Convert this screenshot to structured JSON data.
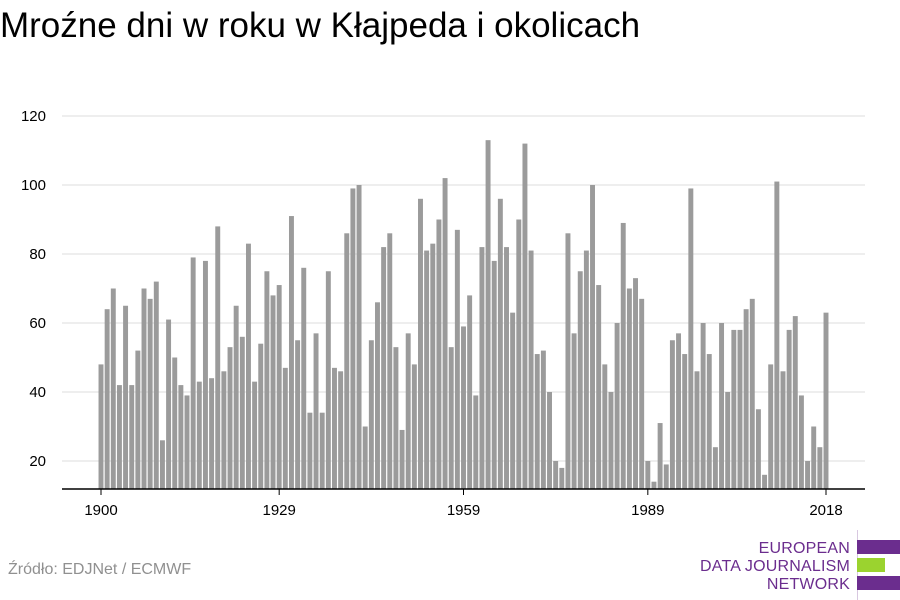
{
  "chart_data": {
    "type": "bar",
    "title": "Mroźne dni w roku w Kłajpeda i okolicach",
    "xlabel": "",
    "ylabel": "",
    "ylim": [
      12,
      120
    ],
    "yticks": [
      20,
      40,
      60,
      80,
      100,
      120
    ],
    "xtick_labels": [
      {
        "year": 1900,
        "label": "1900"
      },
      {
        "year": 1929,
        "label": "1929"
      },
      {
        "year": 1959,
        "label": "1959"
      },
      {
        "year": 1989,
        "label": "1989"
      },
      {
        "year": 2018,
        "label": "2018"
      }
    ],
    "x_start": 1900,
    "x_end": 2018,
    "grid": true,
    "bar_color": "#9b9b9b",
    "x": [
      1900,
      1901,
      1902,
      1903,
      1904,
      1905,
      1906,
      1907,
      1908,
      1909,
      1910,
      1911,
      1912,
      1913,
      1914,
      1915,
      1916,
      1917,
      1918,
      1919,
      1920,
      1921,
      1922,
      1923,
      1924,
      1925,
      1926,
      1927,
      1928,
      1929,
      1930,
      1931,
      1932,
      1933,
      1934,
      1935,
      1936,
      1937,
      1938,
      1939,
      1940,
      1941,
      1942,
      1943,
      1944,
      1945,
      1946,
      1947,
      1948,
      1949,
      1950,
      1951,
      1952,
      1953,
      1954,
      1955,
      1956,
      1957,
      1958,
      1959,
      1960,
      1961,
      1962,
      1963,
      1964,
      1965,
      1966,
      1967,
      1968,
      1969,
      1970,
      1971,
      1972,
      1973,
      1974,
      1975,
      1976,
      1977,
      1978,
      1979,
      1980,
      1981,
      1982,
      1983,
      1984,
      1985,
      1986,
      1987,
      1988,
      1989,
      1990,
      1991,
      1992,
      1993,
      1994,
      1995,
      1996,
      1997,
      1998,
      1999,
      2000,
      2001,
      2002,
      2003,
      2004,
      2005,
      2006,
      2007,
      2008,
      2009,
      2010,
      2011,
      2012,
      2013,
      2014,
      2015,
      2016,
      2017,
      2018
    ],
    "values": [
      48,
      64,
      70,
      42,
      65,
      42,
      52,
      70,
      67,
      72,
      26,
      61,
      50,
      42,
      39,
      79,
      43,
      78,
      44,
      88,
      46,
      53,
      65,
      56,
      83,
      43,
      54,
      75,
      68,
      71,
      47,
      91,
      55,
      76,
      34,
      57,
      34,
      75,
      47,
      46,
      86,
      99,
      100,
      30,
      55,
      66,
      82,
      86,
      53,
      29,
      57,
      48,
      96,
      81,
      83,
      90,
      102,
      53,
      87,
      59,
      68,
      39,
      82,
      113,
      78,
      96,
      82,
      63,
      90,
      112,
      81,
      51,
      52,
      40,
      20,
      18,
      86,
      57,
      75,
      81,
      100,
      71,
      48,
      40,
      60,
      89,
      70,
      73,
      67,
      20,
      14,
      31,
      19,
      55,
      57,
      51,
      99,
      46,
      60,
      51,
      24,
      60,
      40,
      58,
      58,
      64,
      67,
      35,
      16,
      48,
      101,
      46,
      58,
      62,
      39,
      20,
      30,
      24,
      63
    ]
  },
  "source": "Źródło: EDJNet / ECMWF",
  "logo": {
    "line1": "EUROPEAN",
    "line2": "DATA JOURNALISM",
    "line3": "NETWORK",
    "purple": "#6b2d8e",
    "green": "#9bd32f"
  }
}
